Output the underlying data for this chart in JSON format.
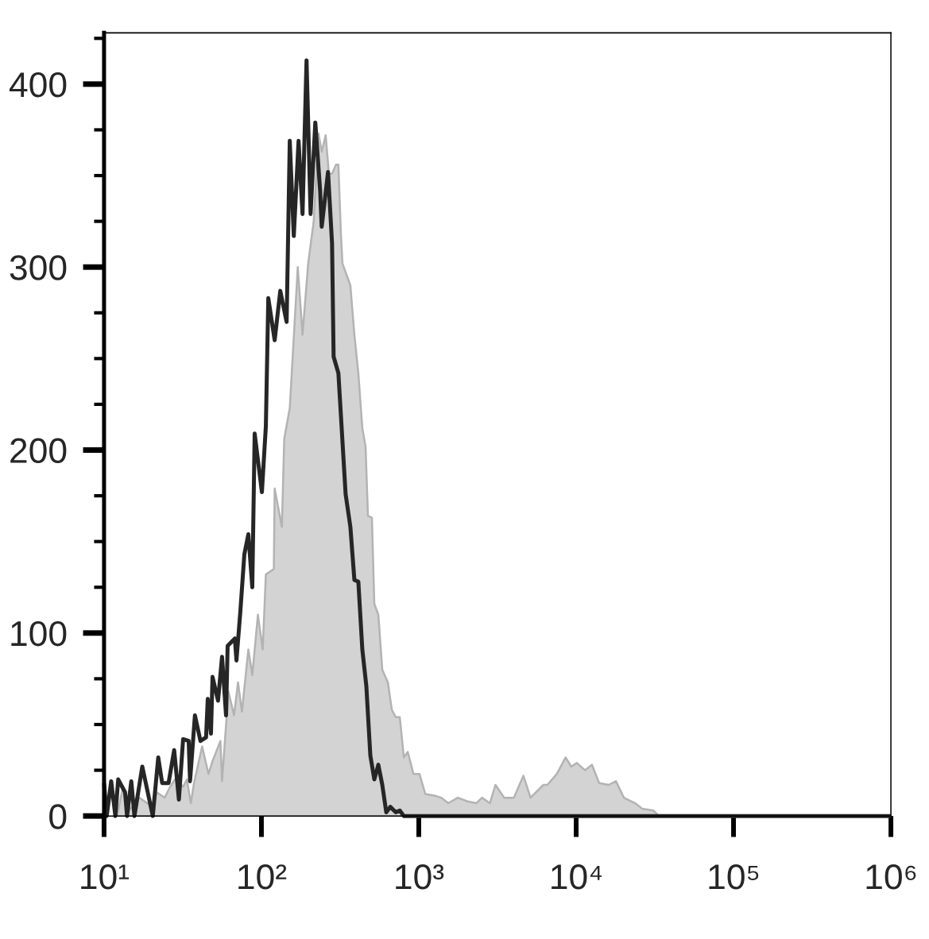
{
  "chart_data": {
    "type": "area",
    "log": "x",
    "xlim": [
      10,
      1000000
    ],
    "ylim": [
      0,
      428
    ],
    "xticks": [
      {
        "value": 10,
        "label": "10¹"
      },
      {
        "value": 100,
        "label": "10²"
      },
      {
        "value": 1000,
        "label": "10³"
      },
      {
        "value": 10000,
        "label": "10⁴"
      },
      {
        "value": 100000,
        "label": "10⁵"
      },
      {
        "value": 1000000,
        "label": "10⁶"
      }
    ],
    "yticks": [
      0,
      {
        "value": 25,
        "label": null
      },
      {
        "value": 50,
        "label": null
      },
      {
        "value": 75,
        "label": null
      },
      100,
      {
        "value": 125,
        "label": null
      },
      {
        "value": 150,
        "label": null
      },
      {
        "value": 175,
        "label": null
      },
      200,
      {
        "value": 225,
        "label": null
      },
      {
        "value": 250,
        "label": null
      },
      {
        "value": 275,
        "label": null
      },
      300,
      {
        "value": 325,
        "label": null
      },
      {
        "value": 350,
        "label": null
      },
      {
        "value": 375,
        "label": null
      },
      400,
      {
        "value": 425,
        "label": null
      }
    ],
    "series": [
      {
        "color": "#d3d3d3",
        "x": [
          12.1,
          13.2,
          14.4,
          16.7,
          20.4,
          21.6,
          24.3,
          26.3,
          28.2,
          31.8,
          33.6,
          35.6,
          37.3,
          42.0,
          46.1,
          48.9,
          54.9,
          56.2,
          61.7,
          67.0,
          71.0,
          75.2,
          82.6,
          87.5,
          95.0,
          101.9,
          106.7,
          119.9,
          121.4,
          134.9,
          139.6,
          151.4,
          170.2,
          182.5,
          198.2,
          214.9,
          230.5,
          241.6,
          256.0,
          268.5,
          281.0,
          298.1,
          308.4,
          319.7,
          327.2,
          346.7,
          367.5,
          389.7,
          413.0,
          437.7,
          458.9,
          475.4,
          503.7,
          521.7,
          553.2,
          586.2,
          635.9,
          674.5,
          714.5,
          757.3,
          803.5,
          851.1,
          924.5,
          1010,
          1100,
          1280,
          1390,
          1540,
          1770,
          2040,
          2320,
          2520,
          2830,
          3070,
          3490,
          4020,
          4620,
          5130,
          6190,
          6560,
          7540,
          8570,
          9310,
          10100,
          11400,
          12600,
          14000,
          16100,
          17900,
          20100,
          23700,
          26300,
          30900,
          33600
        ],
        "values": [
          0,
          16,
          3,
          10,
          5,
          13,
          10,
          16,
          20,
          16,
          20,
          7,
          18,
          38,
          23,
          30,
          41,
          19,
          68,
          55,
          73,
          57,
          91,
          77,
          110,
          91,
          132,
          135,
          179,
          158,
          206,
          223,
          300,
          263,
          302,
          325,
          373,
          363,
          372,
          351,
          351,
          356,
          356,
          319,
          302,
          296,
          290,
          263,
          242,
          212,
          202,
          164,
          163,
          116,
          110,
          80,
          73,
          58,
          54,
          54,
          32,
          35,
          23,
          23,
          12,
          11,
          10,
          7,
          10,
          8,
          7,
          10,
          7,
          17,
          10,
          10,
          22,
          10,
          17,
          17,
          23,
          32,
          27,
          29,
          25,
          28,
          18,
          17,
          19,
          10,
          7,
          4,
          3,
          0
        ]
      },
      {
        "type": "line",
        "color": "#262626",
        "x": [
          10,
          10.4,
          11.1,
          11.8,
          12.3,
          13.6,
          14.0,
          14.9,
          15.6,
          17.5,
          20.4,
          22.1,
          23.4,
          25.7,
          27.9,
          29.9,
          31.8,
          34.5,
          35.2,
          37.8,
          41.0,
          44.5,
          45.6,
          47.8,
          48.9,
          53.0,
          56.2,
          59.6,
          61.0,
          67.8,
          69.4,
          73.5,
          77.9,
          82.6,
          87.5,
          90.6,
          100.7,
          106.7,
          110.6,
          121.4,
          131.8,
          144.6,
          151.4,
          160.6,
          172.2,
          182.5,
          193.5,
          205.3,
          220.0,
          236.0,
          241.6,
          265.0,
          281.0,
          287.6,
          308.4,
          342.7,
          367.5,
          389.7,
          413.0,
          437.7,
          464.2,
          492.2,
          521.7,
          553.2,
          586.2,
          621.4,
          658.9,
          714.5,
          757.3,
          803.5,
          1000000
        ],
        "values": [
          18,
          0,
          19,
          0,
          20,
          13,
          0,
          19,
          0,
          27,
          0,
          32,
          18,
          18,
          36,
          9,
          42,
          41,
          19,
          55,
          41,
          43,
          64,
          45,
          76,
          63,
          87,
          55,
          93,
          97,
          85,
          112,
          143,
          154,
          125,
          209,
          177,
          213,
          283,
          260,
          287,
          270,
          369,
          317,
          369,
          329,
          413,
          329,
          379,
          342,
          322,
          352,
          313,
          251,
          242,
          176,
          158,
          129,
          128,
          91,
          71,
          33,
          20,
          28,
          17,
          2,
          5,
          2,
          3,
          0,
          0
        ]
      }
    ]
  }
}
